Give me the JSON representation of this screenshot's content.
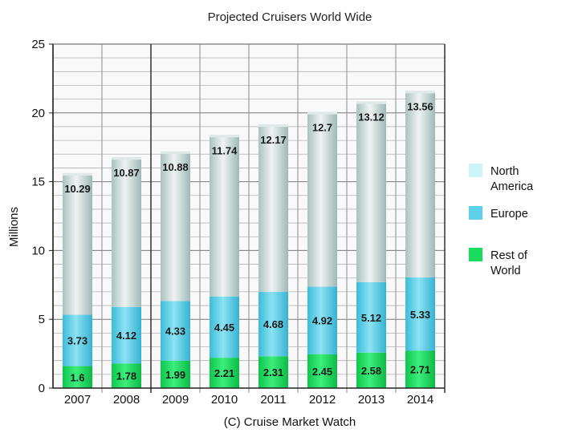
{
  "chart_data": {
    "type": "bar",
    "stacked": true,
    "title": "Projected Cruisers World Wide",
    "xlabel": "(C) Cruise Market Watch",
    "ylabel": "Millions",
    "ylim": [
      0,
      25
    ],
    "yticks": [
      0,
      5,
      10,
      15,
      20,
      25
    ],
    "grid": true,
    "legend_position": "right",
    "categories": [
      "2007",
      "2008",
      "2009",
      "2010",
      "2011",
      "2012",
      "2013",
      "2014"
    ],
    "series": [
      {
        "name": "Rest of World",
        "color": "#19dc5c",
        "values": [
          1.6,
          1.78,
          1.99,
          2.21,
          2.31,
          2.45,
          2.58,
          2.71
        ],
        "labels": [
          "1.6",
          "1.78",
          "1.99",
          "2.21",
          "2.31",
          "2.45",
          "2.58",
          "2.71"
        ]
      },
      {
        "name": "Europe",
        "color": "#5fd0ea",
        "values": [
          3.73,
          4.12,
          4.33,
          4.45,
          4.68,
          4.92,
          5.12,
          5.33
        ],
        "labels": [
          "3.73",
          "4.12",
          "4.33",
          "4.45",
          "4.68",
          "4.92",
          "5.12",
          "5.33"
        ]
      },
      {
        "name": "North America",
        "color": "#c6d8d6",
        "values": [
          10.29,
          10.87,
          10.88,
          11.74,
          12.17,
          12.7,
          13.12,
          13.56
        ],
        "labels": [
          "10.29",
          "10.87",
          "10.88",
          "11.74",
          "12.17",
          "12.7",
          "13.12",
          "13.56"
        ]
      }
    ],
    "legend": [
      {
        "label_lines": [
          "North",
          "America"
        ],
        "color": "#cdf4f6"
      },
      {
        "label_lines": [
          "Europe"
        ],
        "color": "#5fd0ea"
      },
      {
        "label_lines": [
          "Rest of",
          "World"
        ],
        "color": "#19dc5c"
      }
    ]
  }
}
